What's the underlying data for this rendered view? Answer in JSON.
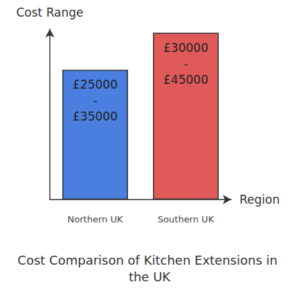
{
  "chart_data": {
    "type": "bar",
    "title": "Cost Comparison of Kitchen Extensions in the UK",
    "x_label": "Region",
    "y_label": "Cost Range",
    "categories": [
      "Northern UK",
      "Southern UK"
    ],
    "values": [
      35000,
      45000
    ],
    "value_labels": [
      "£25000 - £35000",
      "£30000 - £45000"
    ],
    "colors": [
      "#4a7fe0",
      "#e05a5a"
    ],
    "ylim": [
      0,
      46000
    ],
    "yticks": [],
    "grid": false,
    "data_labels": true,
    "tick_labels": "x"
  }
}
